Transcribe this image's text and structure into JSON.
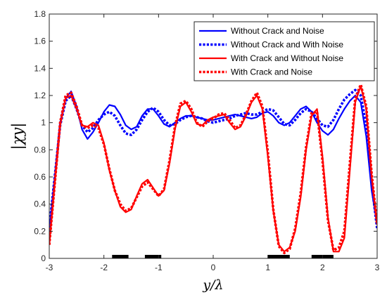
{
  "chart_data": {
    "type": "line",
    "xlabel": "y/λ",
    "ylabel": "|χy|",
    "xlim": [
      -3,
      3
    ],
    "ylim": [
      0,
      1.8
    ],
    "xticks": [
      -3,
      -2,
      -1,
      0,
      1,
      2,
      3
    ],
    "xtick_labels": [
      "-3",
      "-2",
      "-1",
      "0",
      "1",
      "2",
      "3"
    ],
    "yticks": [
      0,
      0.2,
      0.4,
      0.6,
      0.8,
      1,
      1.2,
      1.4,
      1.6,
      1.8
    ],
    "ytick_labels": [
      "0",
      "0.2",
      "0.4",
      "0.6",
      "0.8",
      "1",
      "1.2",
      "1.4",
      "1.6",
      "1.8"
    ],
    "legend_position": "top-right",
    "crack_segments": [
      [
        -1.85,
        -1.55
      ],
      [
        -1.25,
        -0.95
      ],
      [
        1.0,
        1.4
      ],
      [
        1.8,
        2.2
      ]
    ],
    "series": [
      {
        "name": "Without Crack and Noise",
        "color": "#0000ff",
        "style": "solid",
        "x": [
          -3.0,
          -2.9,
          -2.8,
          -2.7,
          -2.6,
          -2.5,
          -2.4,
          -2.3,
          -2.2,
          -2.1,
          -2.0,
          -1.9,
          -1.8,
          -1.7,
          -1.6,
          -1.5,
          -1.4,
          -1.3,
          -1.2,
          -1.1,
          -1.0,
          -0.9,
          -0.8,
          -0.7,
          -0.6,
          -0.5,
          -0.4,
          -0.3,
          -0.2,
          -0.1,
          0.0,
          0.1,
          0.2,
          0.3,
          0.4,
          0.5,
          0.6,
          0.7,
          0.8,
          0.9,
          1.0,
          1.1,
          1.2,
          1.3,
          1.4,
          1.5,
          1.6,
          1.7,
          1.8,
          1.9,
          2.0,
          2.1,
          2.2,
          2.3,
          2.4,
          2.5,
          2.6,
          2.7,
          2.8,
          2.9,
          3.0
        ],
        "y": [
          0.2,
          0.6,
          1.0,
          1.18,
          1.23,
          1.12,
          0.95,
          0.88,
          0.93,
          1.0,
          1.08,
          1.13,
          1.12,
          1.06,
          0.98,
          0.95,
          0.97,
          1.05,
          1.1,
          1.1,
          1.05,
          0.99,
          0.97,
          1.0,
          1.03,
          1.05,
          1.05,
          1.04,
          1.03,
          1.02,
          1.02,
          1.03,
          1.04,
          1.05,
          1.06,
          1.05,
          1.04,
          1.03,
          1.04,
          1.07,
          1.08,
          1.05,
          1.0,
          0.98,
          1.0,
          1.05,
          1.1,
          1.12,
          1.08,
          1.0,
          0.94,
          0.91,
          0.95,
          1.03,
          1.1,
          1.16,
          1.2,
          1.15,
          0.9,
          0.5,
          0.25
        ]
      },
      {
        "name": "Without Crack and With Noise",
        "color": "#0000ff",
        "style": "dotted",
        "x": [
          -3.0,
          -2.9,
          -2.8,
          -2.7,
          -2.6,
          -2.5,
          -2.4,
          -2.3,
          -2.2,
          -2.1,
          -2.0,
          -1.9,
          -1.8,
          -1.7,
          -1.6,
          -1.5,
          -1.4,
          -1.3,
          -1.2,
          -1.1,
          -1.0,
          -0.9,
          -0.8,
          -0.7,
          -0.6,
          -0.5,
          -0.4,
          -0.3,
          -0.2,
          -0.1,
          0.0,
          0.1,
          0.2,
          0.3,
          0.4,
          0.5,
          0.6,
          0.7,
          0.8,
          0.9,
          1.0,
          1.1,
          1.2,
          1.3,
          1.4,
          1.5,
          1.6,
          1.7,
          1.8,
          1.9,
          2.0,
          2.1,
          2.2,
          2.3,
          2.4,
          2.5,
          2.6,
          2.7,
          2.8,
          2.9,
          3.0
        ],
        "y": [
          0.22,
          0.6,
          0.98,
          1.16,
          1.2,
          1.1,
          0.98,
          0.93,
          0.96,
          1.02,
          1.06,
          1.08,
          1.05,
          0.98,
          0.92,
          0.91,
          0.95,
          1.02,
          1.08,
          1.11,
          1.08,
          1.02,
          0.98,
          0.99,
          1.02,
          1.04,
          1.05,
          1.04,
          1.03,
          1.01,
          1.0,
          1.01,
          1.02,
          1.03,
          1.05,
          1.06,
          1.07,
          1.06,
          1.06,
          1.08,
          1.1,
          1.09,
          1.04,
          0.99,
          0.98,
          1.02,
          1.07,
          1.1,
          1.08,
          1.03,
          0.98,
          0.97,
          1.02,
          1.1,
          1.17,
          1.21,
          1.24,
          1.2,
          0.98,
          0.55,
          0.22
        ]
      },
      {
        "name": "With Crack and Without Noise",
        "color": "#ff0000",
        "style": "solid",
        "x": [
          -3.0,
          -2.9,
          -2.8,
          -2.7,
          -2.6,
          -2.5,
          -2.4,
          -2.3,
          -2.2,
          -2.1,
          -2.0,
          -1.9,
          -1.8,
          -1.7,
          -1.6,
          -1.5,
          -1.4,
          -1.3,
          -1.2,
          -1.1,
          -1.0,
          -0.9,
          -0.8,
          -0.7,
          -0.6,
          -0.5,
          -0.4,
          -0.3,
          -0.2,
          -0.1,
          0.0,
          0.1,
          0.2,
          0.3,
          0.4,
          0.5,
          0.6,
          0.7,
          0.8,
          0.9,
          1.0,
          1.1,
          1.2,
          1.3,
          1.4,
          1.5,
          1.6,
          1.7,
          1.8,
          1.9,
          2.0,
          2.1,
          2.2,
          2.3,
          2.4,
          2.5,
          2.6,
          2.7,
          2.8,
          2.9,
          3.0
        ],
        "y": [
          0.1,
          0.55,
          0.98,
          1.18,
          1.2,
          1.1,
          0.98,
          0.97,
          1.0,
          0.98,
          0.85,
          0.65,
          0.5,
          0.38,
          0.34,
          0.36,
          0.46,
          0.55,
          0.58,
          0.52,
          0.46,
          0.5,
          0.7,
          0.95,
          1.12,
          1.15,
          1.08,
          0.99,
          0.98,
          1.02,
          1.04,
          1.05,
          1.06,
          1.0,
          0.95,
          0.97,
          1.05,
          1.15,
          1.2,
          1.1,
          0.75,
          0.35,
          0.1,
          0.05,
          0.08,
          0.2,
          0.45,
          0.8,
          1.05,
          1.1,
          0.75,
          0.3,
          0.05,
          0.05,
          0.15,
          0.65,
          1.15,
          1.27,
          1.1,
          0.6,
          0.25
        ]
      },
      {
        "name": "With Crack and Noise",
        "color": "#ff0000",
        "style": "dotted",
        "x": [
          -3.0,
          -2.9,
          -2.8,
          -2.7,
          -2.6,
          -2.5,
          -2.4,
          -2.3,
          -2.2,
          -2.1,
          -2.0,
          -1.9,
          -1.8,
          -1.7,
          -1.6,
          -1.5,
          -1.4,
          -1.3,
          -1.2,
          -1.1,
          -1.0,
          -0.9,
          -0.8,
          -0.7,
          -0.6,
          -0.5,
          -0.4,
          -0.3,
          -0.2,
          -0.1,
          0.0,
          0.1,
          0.2,
          0.3,
          0.4,
          0.5,
          0.6,
          0.7,
          0.8,
          0.9,
          1.0,
          1.1,
          1.2,
          1.3,
          1.4,
          1.5,
          1.6,
          1.7,
          1.8,
          1.9,
          2.0,
          2.1,
          2.2,
          2.3,
          2.4,
          2.5,
          2.6,
          2.7,
          2.8,
          2.9,
          3.0
        ],
        "y": [
          0.1,
          0.55,
          1.0,
          1.2,
          1.22,
          1.12,
          0.98,
          0.96,
          0.98,
          0.96,
          0.84,
          0.66,
          0.5,
          0.4,
          0.35,
          0.37,
          0.45,
          0.53,
          0.56,
          0.51,
          0.46,
          0.51,
          0.72,
          0.97,
          1.14,
          1.16,
          1.1,
          1.0,
          0.97,
          1.01,
          1.03,
          1.06,
          1.07,
          1.02,
          0.96,
          0.98,
          1.06,
          1.16,
          1.22,
          1.12,
          0.78,
          0.36,
          0.09,
          0.04,
          0.07,
          0.22,
          0.48,
          0.82,
          1.07,
          1.08,
          0.72,
          0.28,
          0.06,
          0.08,
          0.2,
          0.7,
          1.18,
          1.28,
          1.12,
          0.62,
          0.25
        ]
      }
    ]
  }
}
